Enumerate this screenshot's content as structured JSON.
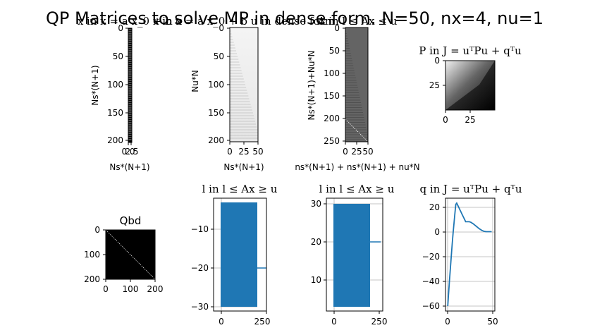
{
  "figure": {
    "suptitle": "QP Matrices to solve MP in dense form. N=50, nx=4, nu=1"
  },
  "colors": {
    "line": "#1f77b4",
    "grid": "#b0b0b0",
    "axis": "#000000"
  },
  "chart_data": [
    {
      "id": "ax1",
      "type": "heatmap",
      "title": "x in x = a x_0 + b u",
      "xlabel": "Ns*(N+1)",
      "ylabel": "Ns*(N+1)",
      "xticks": [
        "0.0",
        "2.5"
      ],
      "yticks": [
        "0",
        "50",
        "100",
        "150",
        "200"
      ],
      "ylim": [
        0,
        204
      ],
      "colormap": "gray",
      "pattern": "thin striped column"
    },
    {
      "id": "ax2",
      "type": "heatmap",
      "title": "x in x = a x_0 + b u in dense form",
      "xlabel": "Ns*(N+1)",
      "ylabel": "Nu*N",
      "xticks": [
        "0",
        "25",
        "50"
      ],
      "yticks": [
        "0",
        "50",
        "100",
        "150",
        "200"
      ],
      "xlim": [
        0,
        50
      ],
      "ylim": [
        0,
        204
      ],
      "colormap": "gray",
      "pattern": "lower-triangular, mostly light grey"
    },
    {
      "id": "ax3",
      "type": "heatmap",
      "title": "A in l ≤ Ax ≤ u",
      "xlabel": "ns*(N+1) + ns*(N+1) + nu*N",
      "ylabel": "Ns*(N+1)+Nu*N",
      "xticks": [
        "0",
        "25",
        "50"
      ],
      "yticks": [
        "0",
        "50",
        "100",
        "150",
        "200",
        "250"
      ],
      "xlim": [
        0,
        50
      ],
      "ylim": [
        0,
        254
      ],
      "colormap": "gray",
      "pattern": "dark grey with white diagonal"
    },
    {
      "id": "ax4",
      "type": "heatmap",
      "title": "P in J = uᵀPu + qᵀu",
      "xticks": [
        "0",
        "25"
      ],
      "yticks": [
        "0",
        "25"
      ],
      "xlim": [
        0,
        50
      ],
      "ylim": [
        0,
        50
      ],
      "colormap": "gray",
      "pattern": "bright top-left fading to black"
    },
    {
      "id": "ax5",
      "type": "heatmap",
      "title": "Qbd",
      "xticks": [
        "0",
        "100",
        "200"
      ],
      "yticks": [
        "0",
        "100",
        "200"
      ],
      "xlim": [
        0,
        200
      ],
      "ylim": [
        0,
        200
      ],
      "colormap": "gray",
      "pattern": "black with white diagonal"
    },
    {
      "id": "ax6",
      "type": "line",
      "title": "l in  l ≤ Ax ≥ u",
      "xticks": [
        "0",
        "250"
      ],
      "yticks": [
        "−10",
        "−20",
        "−30"
      ],
      "xlim": [
        -12,
        265
      ],
      "ylim": [
        -31.5,
        -2.5
      ],
      "grid": true,
      "segments": [
        {
          "x": [
            0,
            204
          ],
          "y": [
            -30,
            -3
          ],
          "style": "dense oscillation filled band"
        },
        {
          "x": [
            204,
            254
          ],
          "y": [
            -20,
            -20
          ],
          "style": "flat line"
        }
      ]
    },
    {
      "id": "ax7",
      "type": "line",
      "title": "l in  l ≤ Ax ≥ u",
      "xticks": [
        "0",
        "250"
      ],
      "yticks": [
        "30",
        "20",
        "10"
      ],
      "xlim": [
        -12,
        265
      ],
      "ylim": [
        1.5,
        31.5
      ],
      "grid": true,
      "segments": [
        {
          "x": [
            0,
            204
          ],
          "y": [
            3,
            30
          ],
          "style": "dense oscillation filled band"
        },
        {
          "x": [
            204,
            254
          ],
          "y": [
            20,
            20
          ],
          "style": "flat line"
        }
      ]
    },
    {
      "id": "ax8",
      "type": "line",
      "title": "q in J = uᵀPu + qᵀu",
      "xticks": [
        "0",
        "50"
      ],
      "yticks": [
        "20",
        "0",
        "−20",
        "−40",
        "−60"
      ],
      "xlim": [
        -2.5,
        52.5
      ],
      "ylim": [
        -64,
        27
      ],
      "grid": true,
      "series": [
        {
          "x": [
            0,
            1,
            2,
            3,
            4,
            5,
            6,
            7,
            8,
            9,
            10,
            11,
            12,
            13,
            14,
            15,
            16,
            17,
            18,
            19,
            20,
            21,
            22,
            23,
            24,
            25,
            26,
            27,
            28,
            29,
            30,
            31,
            32,
            33,
            34,
            35,
            36,
            37,
            38,
            39,
            40,
            41,
            42,
            43,
            44,
            45,
            46,
            47,
            48,
            49
          ],
          "y": [
            -60,
            -49,
            -39,
            -29,
            -19,
            -10,
            -1,
            7,
            15,
            22,
            23,
            21.5,
            20,
            18.5,
            17,
            15.5,
            14,
            12.5,
            11,
            9.5,
            8,
            8,
            8,
            8,
            8,
            7.8,
            7.5,
            7,
            6.5,
            6,
            5.4,
            4.8,
            4.2,
            3.6,
            3,
            2.5,
            2,
            1.5,
            1,
            0.7,
            0.4,
            0.2,
            0.1,
            0,
            0,
            0,
            0,
            0,
            0,
            0
          ]
        }
      ]
    }
  ]
}
